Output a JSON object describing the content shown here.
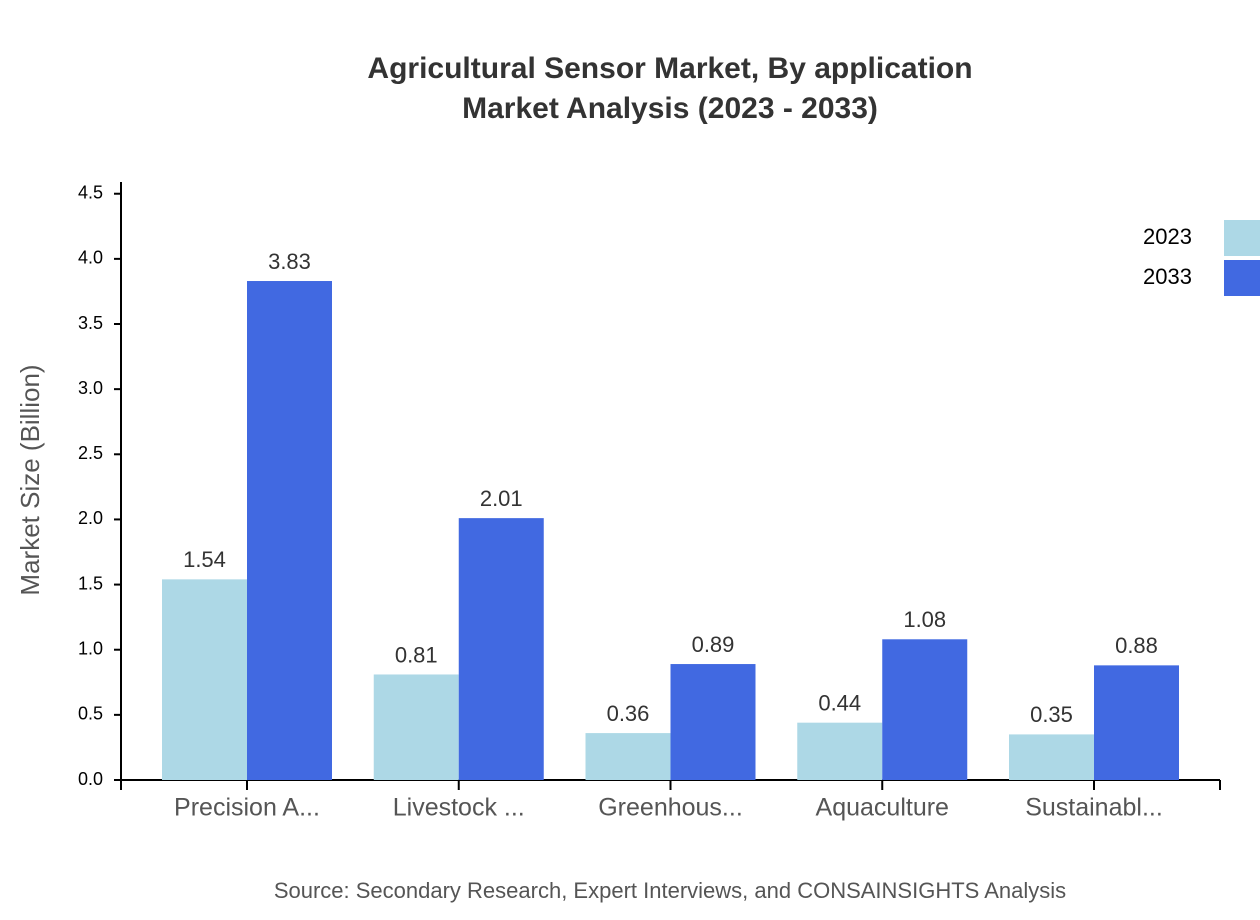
{
  "chart_data": {
    "type": "bar",
    "title": [
      "Agricultural Sensor Market, By application",
      "Market Analysis (2023 - 2033)"
    ],
    "y_label": "Market Size (Billion)",
    "source": "Source: Secondary Research, Expert Interviews, and CONSAINSIGHTS Analysis",
    "categories": [
      "Precision A...",
      "Livestock ...",
      "Greenhous...",
      "Aquaculture",
      "Sustainabl..."
    ],
    "series": [
      {
        "name": "2023",
        "color": "#add8e6",
        "values": [
          1.54,
          0.81,
          0.36,
          0.44,
          0.35
        ]
      },
      {
        "name": "2033",
        "color": "#4169e1",
        "values": [
          3.83,
          2.01,
          0.89,
          1.08,
          0.88
        ]
      }
    ],
    "ylim": [
      0,
      4.59
    ],
    "yticks": [
      {
        "value": 0,
        "label": "0.0"
      },
      {
        "value": 0.5,
        "label": "0.5"
      },
      {
        "value": 1,
        "label": "1.0"
      },
      {
        "value": 1.5,
        "label": "1.5"
      },
      {
        "value": 2,
        "label": "2.0"
      },
      {
        "value": 2.5,
        "label": "2.5"
      },
      {
        "value": 3,
        "label": "3.0"
      },
      {
        "value": 3.5,
        "label": "3.5"
      },
      {
        "value": 4,
        "label": "4.0"
      },
      {
        "value": 4.5,
        "label": "4.5"
      }
    ],
    "legend": "top-right"
  }
}
